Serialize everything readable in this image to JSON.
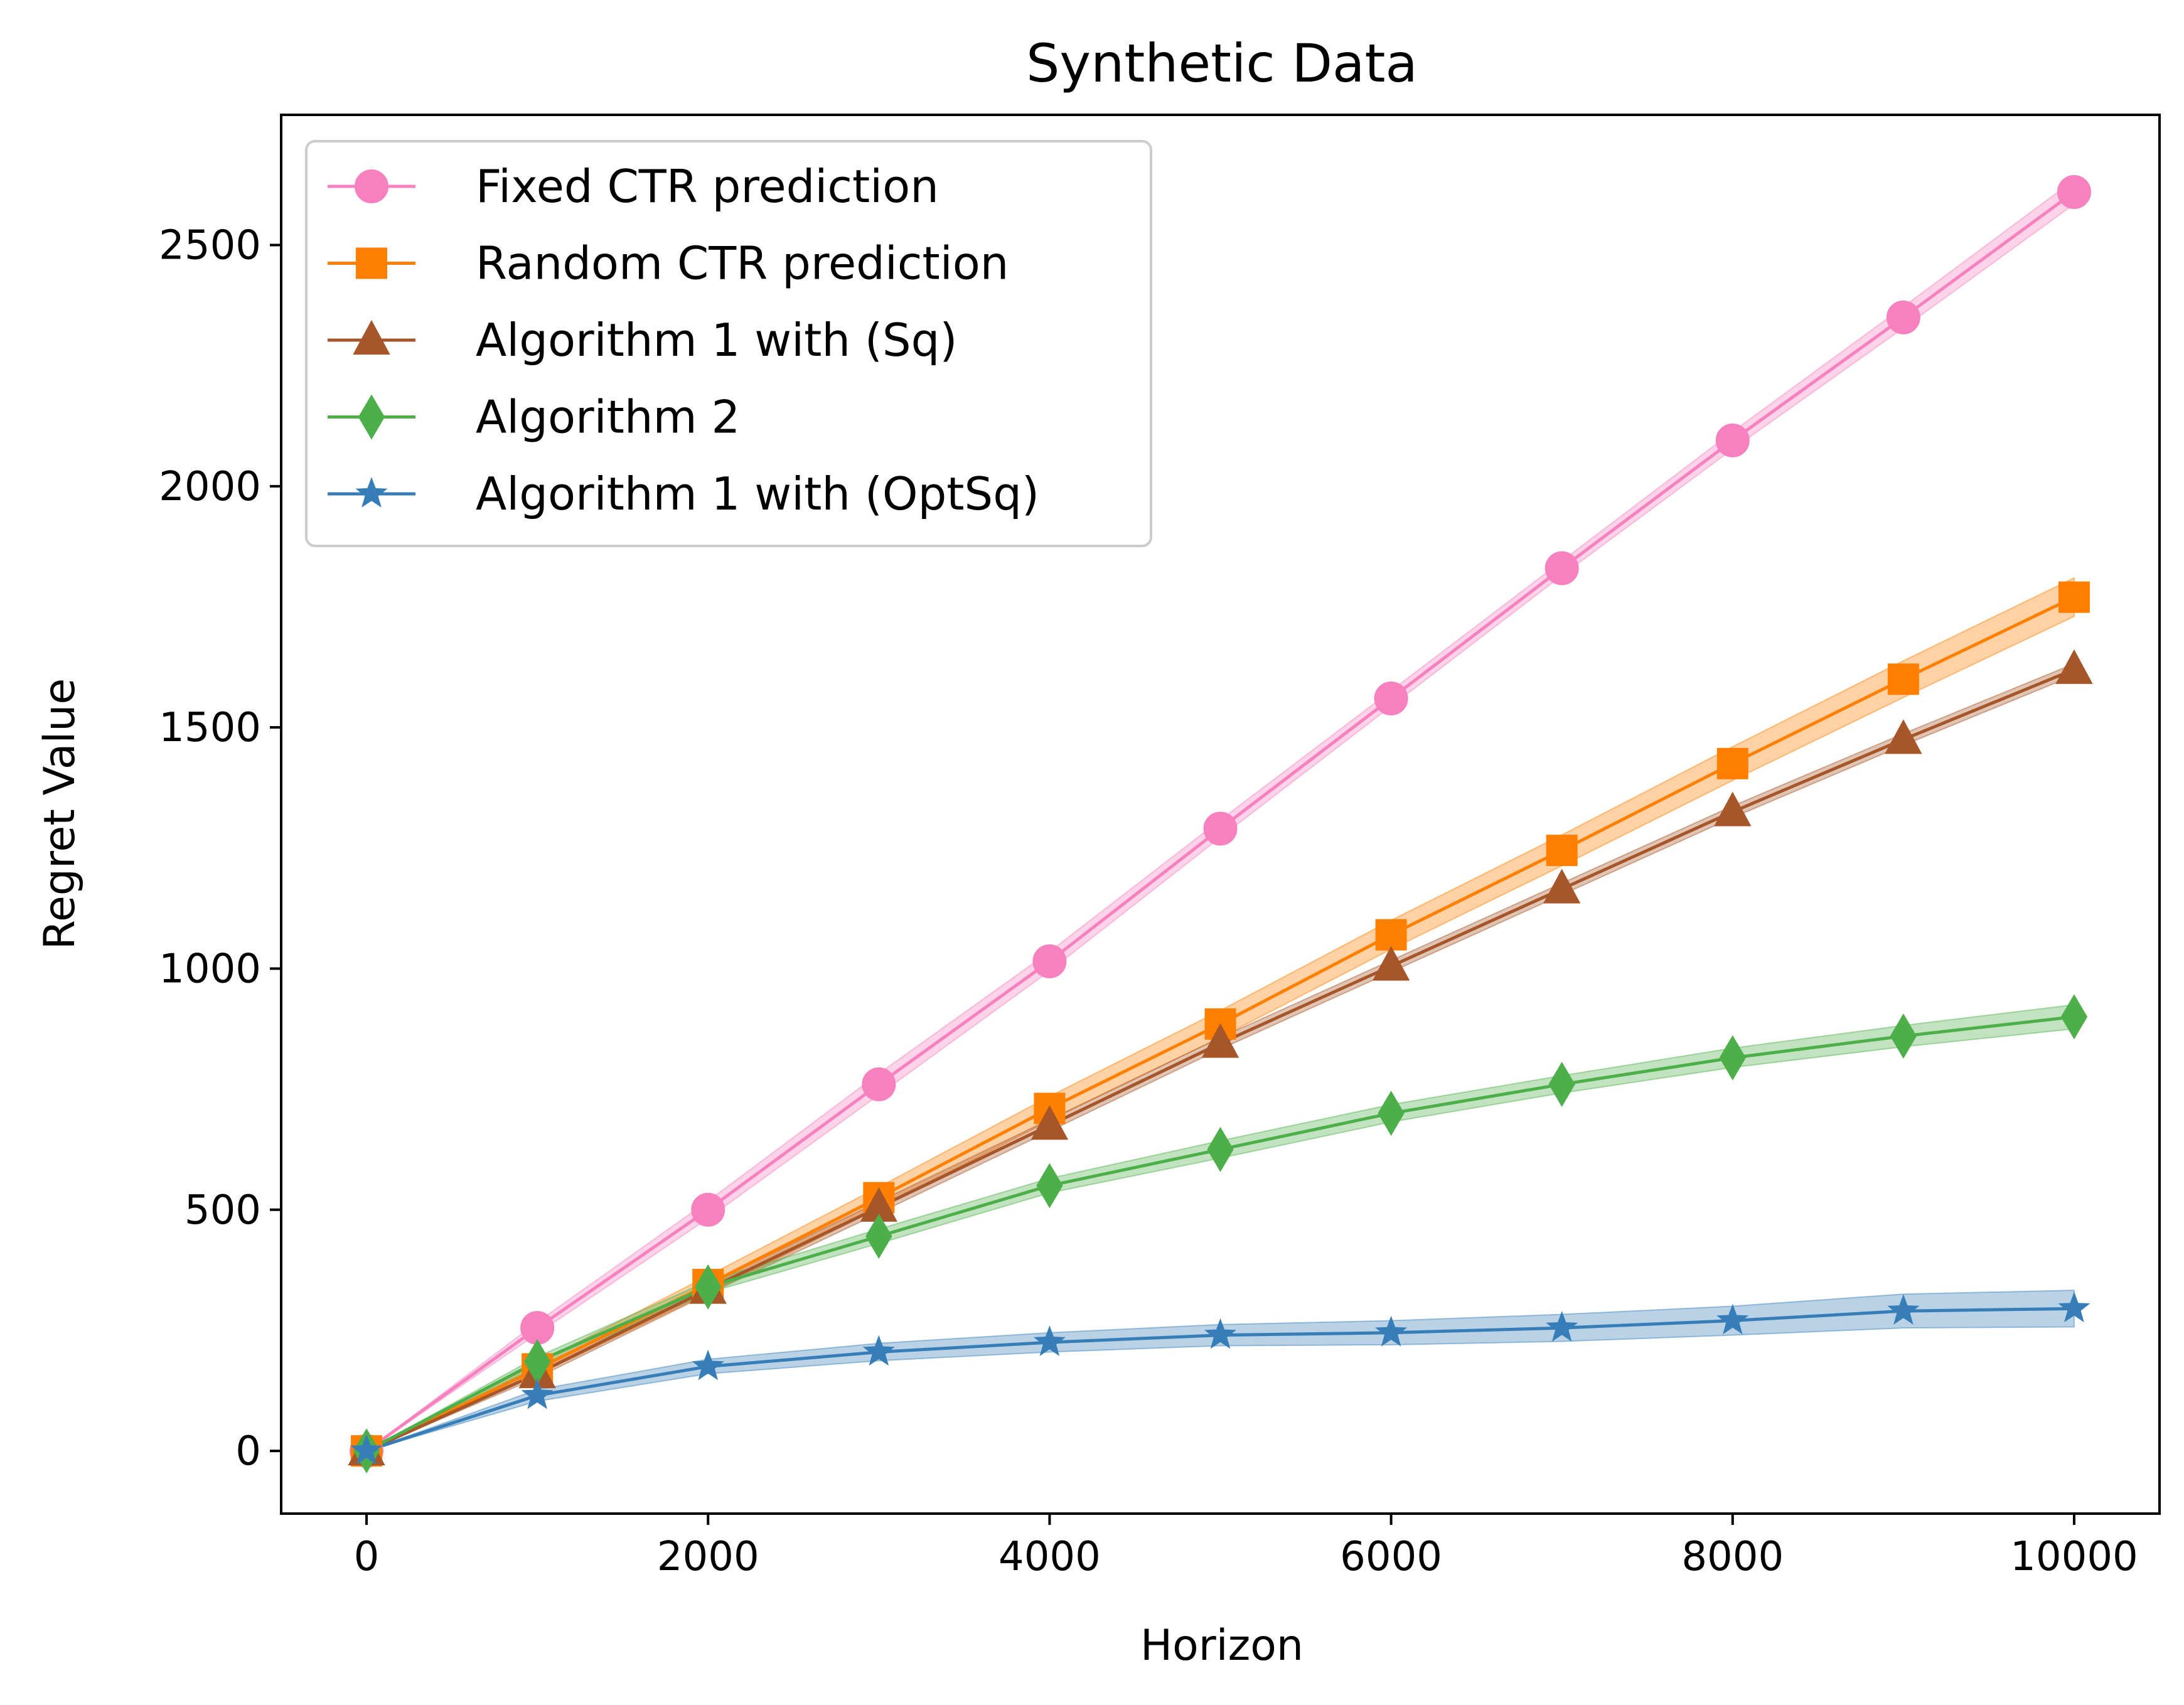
{
  "chart_data": {
    "type": "line",
    "title": "Synthetic Data",
    "xlabel": "Horizon",
    "ylabel": "Regret Value",
    "xlim": [
      -500,
      10500
    ],
    "ylim": [
      -130,
      2770
    ],
    "xticks": [
      0,
      2000,
      4000,
      6000,
      8000,
      10000
    ],
    "yticks": [
      0,
      500,
      1000,
      1500,
      2000,
      2500
    ],
    "grid": false,
    "legend_position": "top-left",
    "x": [
      0,
      1000,
      2000,
      3000,
      4000,
      5000,
      6000,
      7000,
      8000,
      9000,
      10000
    ],
    "series": [
      {
        "name": "Fixed CTR prediction",
        "color": "#f781bf",
        "marker": "circle",
        "values": [
          0,
          255,
          500,
          760,
          1015,
          1290,
          1560,
          1830,
          2095,
          2350,
          2610
        ],
        "band": [
          0,
          12,
          18,
          22,
          20,
          18,
          16,
          15,
          18,
          22,
          25
        ]
      },
      {
        "name": "Random CTR prediction",
        "color": "#ff7f00",
        "marker": "square",
        "values": [
          0,
          170,
          345,
          525,
          710,
          885,
          1070,
          1245,
          1425,
          1600,
          1770
        ],
        "band": [
          0,
          12,
          18,
          22,
          25,
          28,
          30,
          32,
          35,
          38,
          40
        ]
      },
      {
        "name": "Algorithm 1 with (Sq)",
        "color": "#a65628",
        "marker": "triangle",
        "values": [
          0,
          160,
          335,
          505,
          675,
          845,
          1005,
          1165,
          1325,
          1475,
          1620
        ],
        "band": [
          0,
          8,
          10,
          12,
          12,
          12,
          12,
          12,
          12,
          12,
          12
        ]
      },
      {
        "name": "Algorithm 2",
        "color": "#4daf4a",
        "marker": "diamond",
        "values": [
          0,
          185,
          340,
          445,
          550,
          625,
          700,
          760,
          815,
          860,
          900
        ],
        "band": [
          0,
          10,
          12,
          15,
          15,
          18,
          18,
          18,
          20,
          22,
          25
        ]
      },
      {
        "name": "Algorithm 1 with (OptSq)",
        "color": "#377eb8",
        "marker": "star",
        "values": [
          0,
          115,
          175,
          205,
          225,
          240,
          245,
          255,
          270,
          290,
          295
        ],
        "band": [
          0,
          12,
          15,
          18,
          20,
          22,
          25,
          28,
          30,
          35,
          38
        ]
      }
    ]
  }
}
